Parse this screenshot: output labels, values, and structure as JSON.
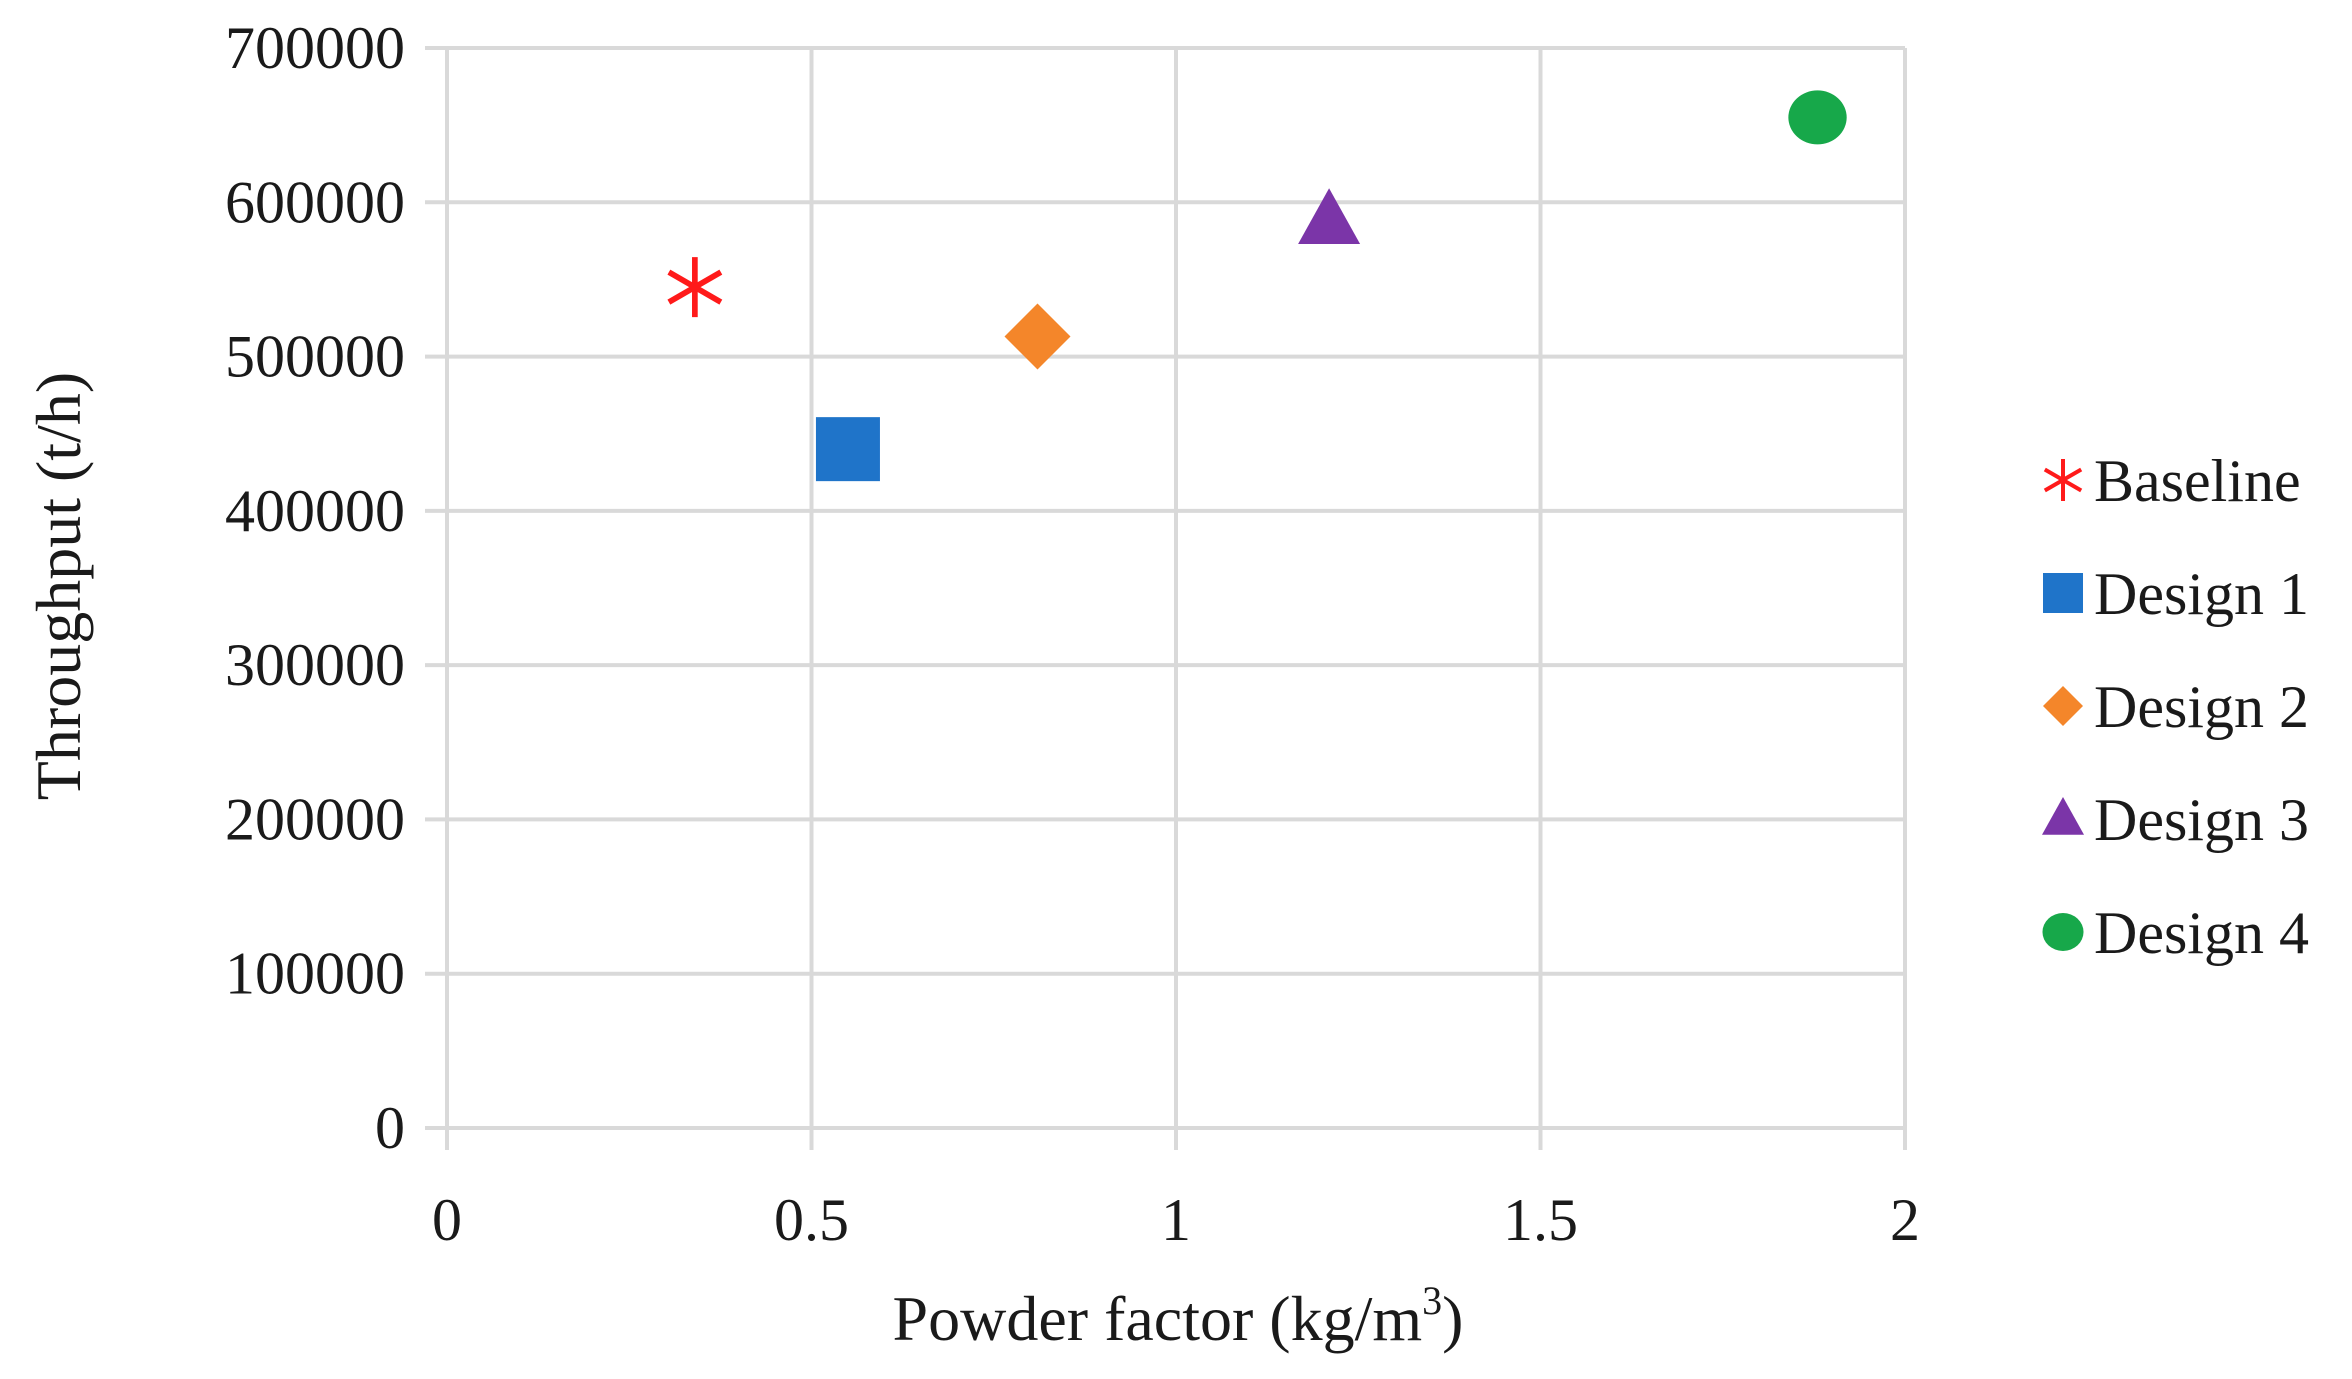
{
  "chart_data": {
    "type": "scatter",
    "title": "",
    "xlabel": "Powder factor (kg/m",
    "xlabel_sup": "3",
    "xlabel_close": ")",
    "ylabel": "Throughput (t/h)",
    "xlim": [
      0,
      2
    ],
    "ylim": [
      0,
      700000
    ],
    "x_ticks": [
      0,
      0.5,
      1,
      1.5,
      2
    ],
    "x_tick_labels": [
      "0",
      "0.5",
      "1",
      "1.5",
      "2"
    ],
    "y_ticks": [
      0,
      100000,
      200000,
      300000,
      400000,
      500000,
      600000,
      700000
    ],
    "y_tick_labels": [
      "0",
      "100000",
      "200000",
      "300000",
      "400000",
      "500000",
      "600000",
      "700000"
    ],
    "grid": true,
    "legend_position": "right",
    "series": [
      {
        "name": "Baseline",
        "marker": "asterisk",
        "color": "#ff1a1a",
        "x": [
          0.34
        ],
        "y": [
          545000
        ]
      },
      {
        "name": "Design 1",
        "marker": "square",
        "color": "#1f74c9",
        "x": [
          0.55
        ],
        "y": [
          440000
        ]
      },
      {
        "name": "Design 2",
        "marker": "diamond",
        "color": "#f4862a",
        "x": [
          0.81
        ],
        "y": [
          513000
        ]
      },
      {
        "name": "Design 3",
        "marker": "triangle",
        "color": "#7b35a8",
        "x": [
          1.21
        ],
        "y": [
          588000
        ]
      },
      {
        "name": "Design 4",
        "marker": "circle",
        "color": "#17a84a",
        "x": [
          1.88
        ],
        "y": [
          655000
        ]
      }
    ]
  }
}
